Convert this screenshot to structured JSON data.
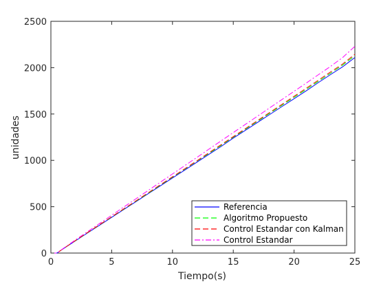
{
  "chart_data": {
    "type": "line",
    "xlabel": "Tiempo(s)",
    "ylabel": "unidades",
    "xlim": [
      0,
      25
    ],
    "ylim": [
      0,
      2500
    ],
    "xticks": [
      0,
      5,
      10,
      15,
      20,
      25
    ],
    "yticks": [
      0,
      500,
      1000,
      1500,
      2000,
      2500
    ],
    "grid": false,
    "legend_position": "bottom-right",
    "series": [
      {
        "name": "Referencia",
        "color": "#0000ff",
        "dash": "solid",
        "x": [
          0,
          0.5,
          1,
          2,
          3,
          4,
          5,
          6,
          7,
          8,
          9,
          10,
          11,
          12,
          13,
          14,
          15,
          16,
          17,
          18,
          19,
          20,
          21,
          22,
          23,
          24,
          25
        ],
        "y": [
          0,
          0,
          45,
          130,
          215,
          300,
          385,
          470,
          555,
          640,
          725,
          810,
          895,
          980,
          1065,
          1150,
          1240,
          1325,
          1410,
          1495,
          1580,
          1665,
          1750,
          1840,
          1925,
          2010,
          2110
        ]
      },
      {
        "name": "Algoritmo Propuesto",
        "color": "#00ff00",
        "dash": "dashed",
        "x": [
          0,
          0.5,
          1,
          2,
          3,
          4,
          5,
          6,
          7,
          8,
          9,
          10,
          11,
          12,
          13,
          14,
          15,
          16,
          17,
          18,
          19,
          20,
          21,
          22,
          23,
          24,
          25
        ],
        "y": [
          0,
          0,
          45,
          132,
          218,
          304,
          390,
          475,
          560,
          645,
          732,
          818,
          904,
          990,
          1076,
          1162,
          1250,
          1336,
          1422,
          1508,
          1594,
          1680,
          1766,
          1854,
          1940,
          2028,
          2130
        ]
      },
      {
        "name": "Control Estandar con Kalman",
        "color": "#ff0000",
        "dash": "dashed",
        "x": [
          0,
          0.5,
          1,
          2,
          3,
          4,
          5,
          6,
          7,
          8,
          9,
          10,
          11,
          12,
          13,
          14,
          15,
          16,
          17,
          18,
          19,
          20,
          21,
          22,
          23,
          24,
          25
        ],
        "y": [
          0,
          0,
          46,
          134,
          220,
          306,
          392,
          478,
          564,
          650,
          737,
          823,
          909,
          995,
          1082,
          1169,
          1256,
          1343,
          1430,
          1517,
          1604,
          1691,
          1778,
          1866,
          1953,
          2040,
          2145
        ]
      },
      {
        "name": "Control Estandar",
        "color": "#ff00ff",
        "dash": "dashdot",
        "x": [
          0,
          0.5,
          1,
          2,
          3,
          4,
          5,
          6,
          7,
          8,
          9,
          10,
          11,
          12,
          13,
          14,
          15,
          16,
          17,
          18,
          19,
          20,
          21,
          22,
          23,
          24,
          25
        ],
        "y": [
          0,
          0,
          48,
          140,
          229,
          318,
          408,
          497,
          586,
          675,
          764,
          853,
          942,
          1031,
          1121,
          1210,
          1300,
          1389,
          1478,
          1567,
          1656,
          1745,
          1834,
          1924,
          2013,
          2110,
          2230
        ]
      }
    ]
  }
}
